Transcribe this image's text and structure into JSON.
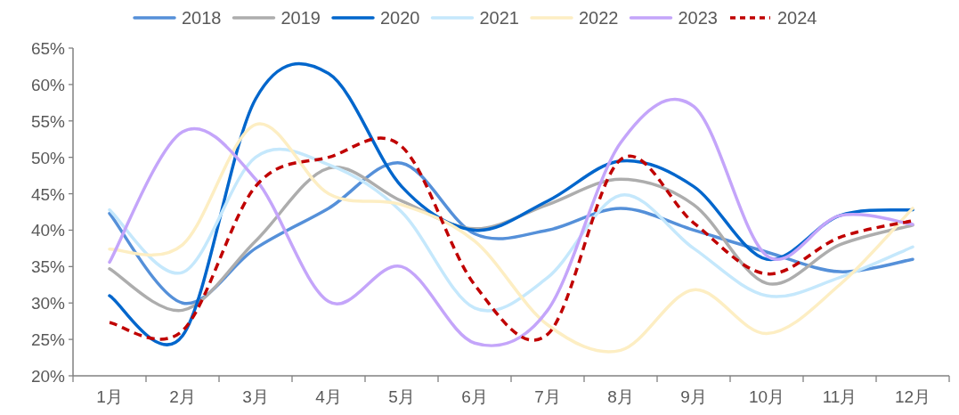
{
  "chart_data": {
    "type": "line",
    "categories": [
      "1月",
      "2月",
      "3月",
      "4月",
      "5月",
      "6月",
      "7月",
      "8月",
      "9月",
      "10月",
      "11月",
      "12月"
    ],
    "ylim": [
      20,
      65
    ],
    "yticks": [
      {
        "value": 20,
        "label": "20%"
      },
      {
        "value": 25,
        "label": "25%"
      },
      {
        "value": 30,
        "label": "30%"
      },
      {
        "value": 35,
        "label": "35%"
      },
      {
        "value": 40,
        "label": "40%"
      },
      {
        "value": 45,
        "label": "45%"
      },
      {
        "value": 50,
        "label": "50%"
      },
      {
        "value": 55,
        "label": "55%"
      },
      {
        "value": 60,
        "label": "60%"
      },
      {
        "value": 65,
        "label": "65%"
      }
    ],
    "grid": false,
    "legend": "top",
    "marker": "none",
    "series": [
      {
        "name": "2018",
        "color": "#5590d9",
        "values": [
          42.3,
          30,
          37.5,
          43,
          49.2,
          39.5,
          40,
          43,
          40,
          37,
          34.3,
          36
        ]
      },
      {
        "name": "2019",
        "color": "#adadad",
        "values": [
          34.7,
          29,
          38.5,
          48.5,
          44,
          40.2,
          43.5,
          47,
          43.5,
          32.7,
          38,
          40.7
        ]
      },
      {
        "name": "2020",
        "color": "#0066cc",
        "values": [
          31,
          25.5,
          58,
          61.5,
          46,
          40,
          44,
          49.5,
          46,
          36,
          42,
          42.8
        ]
      },
      {
        "name": "2021",
        "color": "#c5e8fc",
        "values": [
          42.8,
          34.2,
          50,
          49,
          42.5,
          29.3,
          33.5,
          44.8,
          37.5,
          31,
          33.5,
          37.7
        ]
      },
      {
        "name": "2022",
        "color": "#fdeec3",
        "values": [
          37.4,
          38,
          54.5,
          45,
          43.5,
          38.5,
          27,
          23.5,
          31.8,
          25.8,
          32.5,
          43
        ]
      },
      {
        "name": "2023",
        "color": "#c4a5fa",
        "values": [
          35.6,
          53.5,
          47,
          30.2,
          35,
          24.5,
          29,
          52,
          57,
          36.5,
          42,
          40.8
        ]
      },
      {
        "name": "2024",
        "color": "#c00000",
        "line_style": "dashed",
        "values": [
          27.3,
          26.2,
          46,
          50,
          51.5,
          32.5,
          25.7,
          49.7,
          41,
          34,
          39,
          41.3
        ]
      }
    ]
  }
}
